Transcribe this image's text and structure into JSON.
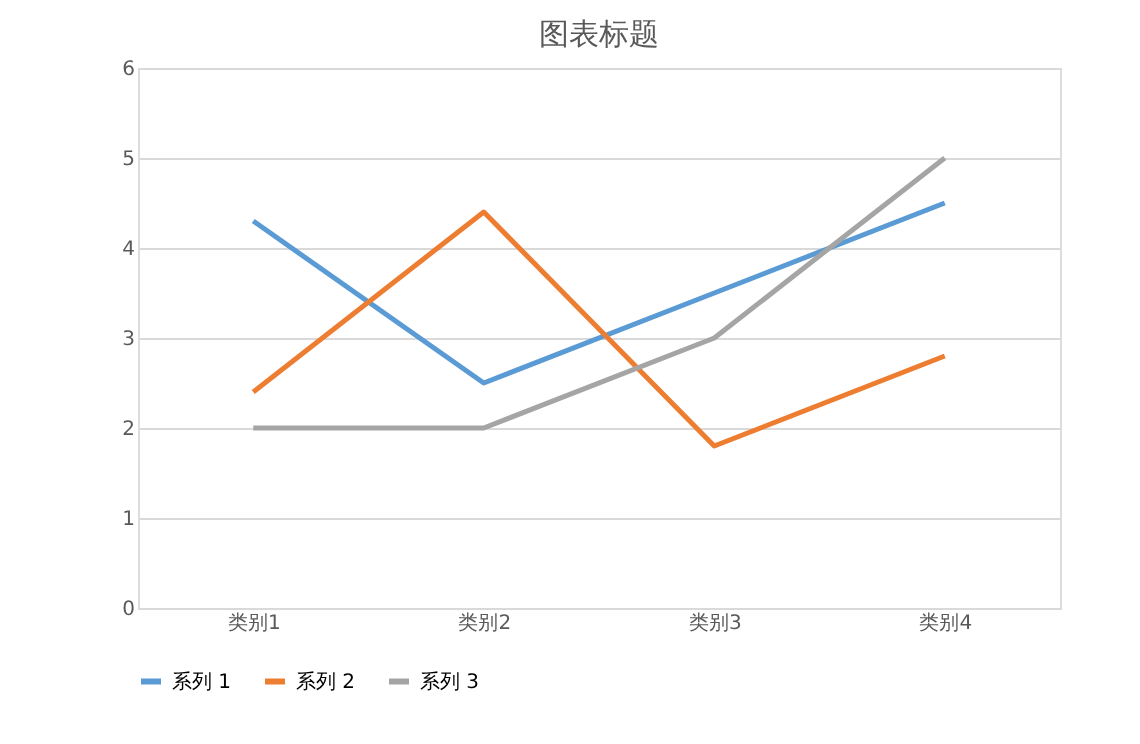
{
  "chart_data": {
    "type": "line",
    "title": "图表标题",
    "categories": [
      "类别1",
      "类别2",
      "类别3",
      "类别4"
    ],
    "series": [
      {
        "name": "系列 1",
        "color": "#5b9bd5",
        "values": [
          4.3,
          2.5,
          3.5,
          4.5
        ]
      },
      {
        "name": "系列 2",
        "color": "#ed7d31",
        "values": [
          2.4,
          4.4,
          1.8,
          2.8
        ]
      },
      {
        "name": "系列 3",
        "color": "#a5a5a5",
        "values": [
          2,
          2,
          3,
          5
        ]
      }
    ],
    "ylim": [
      0,
      6
    ],
    "yticks": [
      0,
      1,
      2,
      3,
      4,
      5,
      6
    ],
    "grid": "y",
    "legend": "bottom",
    "marker": "none",
    "line_style": "solid"
  }
}
